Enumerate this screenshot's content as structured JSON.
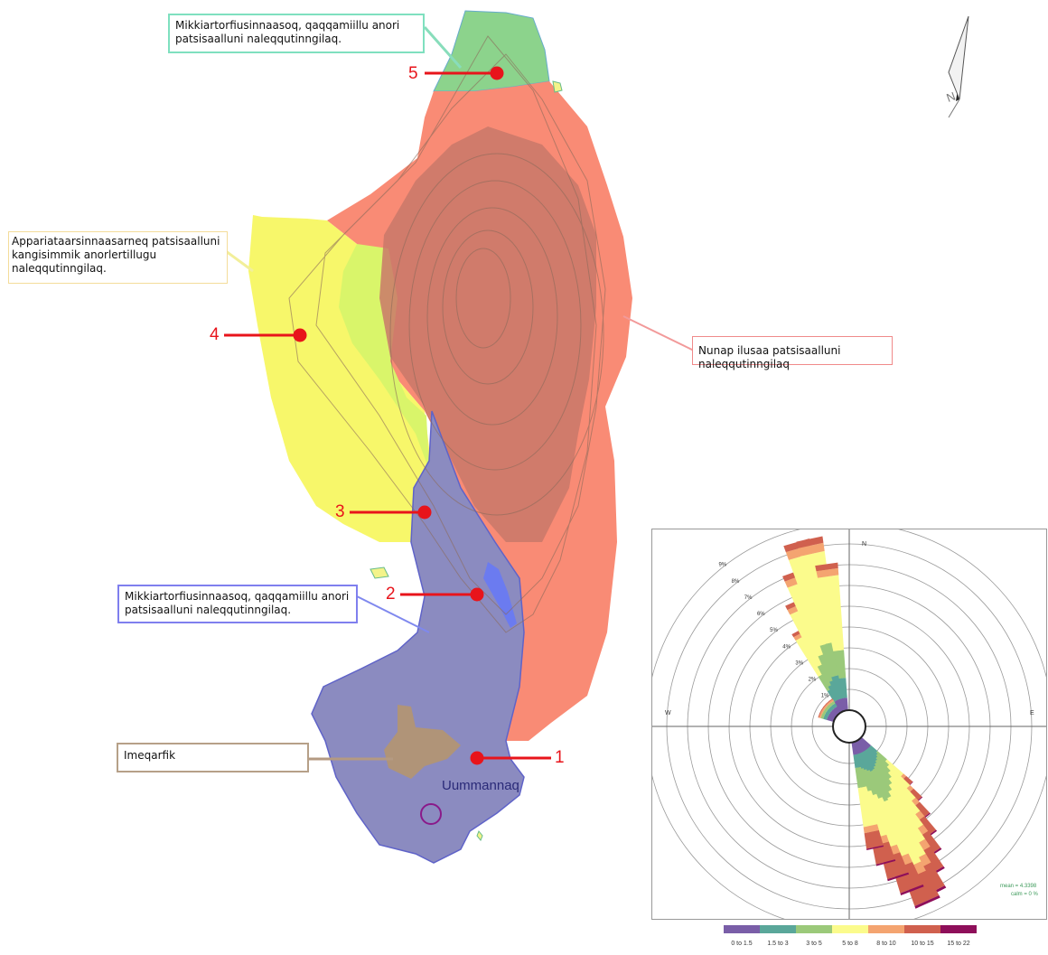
{
  "map": {
    "zones": {
      "zone5": {
        "text": "Mikkiartorfiusinnaasoq, qaqqamiillu anori patsisaalluni naleqqutinngilaq.",
        "color": "#8cd38c"
      },
      "zone4": {
        "text": "Appariataarsinnaasarneq patsisaalluni kangisimmik anorlertillugu naleqqutinngilaq.",
        "color": "#f7f76a"
      },
      "hill": {
        "text": "Nunap ilusaa patsisaalluni naleqqutinngilaq",
        "color": "#f98b75"
      },
      "zone2": {
        "text": "Mikkiartorfiusinnaasoq, qaqqamiillu anori patsisaalluni naleqqutinngilaq.",
        "color": "#8b8bc0"
      },
      "town": {
        "text": "Imeqarfik",
        "color": "#b09478"
      }
    },
    "points": [
      "1",
      "2",
      "3",
      "4",
      "5"
    ],
    "town_name": "Uummannaq",
    "north_label": "N"
  },
  "windrose": {
    "directions": {
      "n": "N",
      "e": "E",
      "w": "W"
    },
    "rings": [
      "1%",
      "2%",
      "3%",
      "4%",
      "5%",
      "6%",
      "7%",
      "8%",
      "9%"
    ],
    "stats": {
      "mean": "mean = 4.3398",
      "calm": "calm = 0 %"
    },
    "legend": [
      {
        "label": "0 to 1.5",
        "color": "#7a5ea8"
      },
      {
        "label": "1.5 to 3",
        "color": "#5aa79a"
      },
      {
        "label": "3 to 5",
        "color": "#9bc97a"
      },
      {
        "label": "5 to 8",
        "color": "#fbfb8c"
      },
      {
        "label": "8 to 10",
        "color": "#f4a470"
      },
      {
        "label": "10 to 15",
        "color": "#d0604e"
      },
      {
        "label": "15 to 22",
        "color": "#8e0f5a"
      }
    ]
  }
}
